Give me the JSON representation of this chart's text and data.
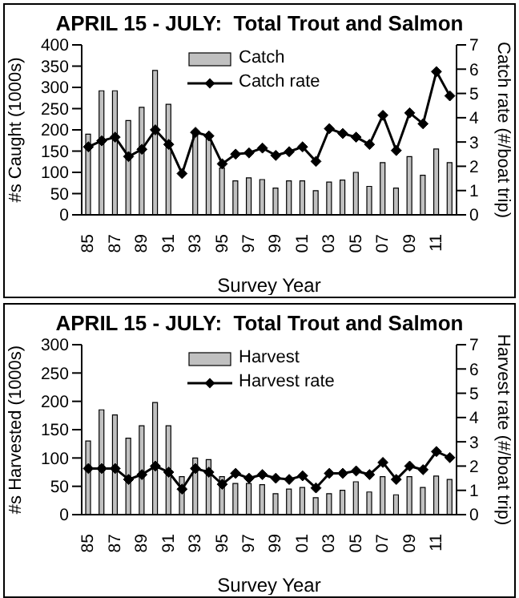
{
  "chart_data": [
    {
      "type": "bar",
      "title": "APRIL 15 - JULY:  Total Trout and Salmon",
      "xlabel": "Survey Year",
      "ylabel": "#s Caught (1000s)",
      "y2label": "Catch rate (#/boat trip)",
      "categories": [
        "85",
        null,
        "87",
        null,
        "89",
        null,
        "91",
        null,
        "93",
        null,
        "95",
        null,
        "97",
        null,
        "99",
        null,
        "01",
        null,
        "03",
        null,
        "05",
        null,
        "07",
        null,
        "09",
        null,
        "11",
        null
      ],
      "series": [
        {
          "name": "Catch",
          "type": "bar",
          "color": "#c0c0c0",
          "values": [
            190,
            292,
            292,
            222,
            253,
            340,
            260,
            null,
            190,
            180,
            110,
            80,
            87,
            83,
            63,
            80,
            80,
            57,
            77,
            82,
            100,
            67,
            123,
            63,
            137,
            93,
            155,
            123
          ]
        },
        {
          "name": "Catch rate",
          "type": "line",
          "axis": "y2",
          "color": "#000000",
          "marker": "diamond",
          "values": [
            2.8,
            3.05,
            3.2,
            2.4,
            2.7,
            3.5,
            2.9,
            1.7,
            3.4,
            3.25,
            2.1,
            2.5,
            2.55,
            2.75,
            2.45,
            2.6,
            2.8,
            2.2,
            3.55,
            3.35,
            3.2,
            2.9,
            4.1,
            2.65,
            4.2,
            3.75,
            5.9,
            4.9
          ]
        }
      ],
      "ylim": [
        0,
        400
      ],
      "yticks": [
        0,
        50,
        100,
        150,
        200,
        250,
        300,
        350,
        400
      ],
      "y2lim": [
        0,
        7
      ],
      "y2ticks": [
        0,
        1,
        2,
        3,
        4,
        5,
        6,
        7
      ],
      "legend": "top",
      "grid": false
    },
    {
      "type": "bar",
      "title": "APRIL 15 - JULY:  Total Trout and Salmon",
      "xlabel": "Survey Year",
      "ylabel": "#s Harvested (1000s)",
      "y2label": "Harvest rate (#/boat trip)",
      "categories": [
        "85",
        null,
        "87",
        null,
        "89",
        null,
        "91",
        null,
        "93",
        null,
        "95",
        null,
        "97",
        null,
        "99",
        null,
        "01",
        null,
        "03",
        null,
        "05",
        null,
        "07",
        null,
        "09",
        null,
        "11",
        null
      ],
      "series": [
        {
          "name": "Harvest",
          "type": "bar",
          "color": "#c0c0c0",
          "values": [
            130,
            185,
            176,
            135,
            157,
            198,
            157,
            67,
            100,
            97,
            67,
            55,
            55,
            53,
            37,
            45,
            48,
            30,
            37,
            43,
            58,
            40,
            67,
            35,
            67,
            48,
            68,
            62
          ]
        },
        {
          "name": "Harvest rate",
          "type": "line",
          "axis": "y2",
          "color": "#000000",
          "marker": "diamond",
          "values": [
            1.9,
            1.9,
            1.9,
            1.45,
            1.65,
            2.0,
            1.75,
            1.05,
            1.9,
            1.75,
            1.25,
            1.7,
            1.5,
            1.65,
            1.5,
            1.45,
            1.6,
            1.1,
            1.7,
            1.7,
            1.8,
            1.65,
            2.15,
            1.45,
            2.0,
            1.85,
            2.6,
            2.35
          ]
        }
      ],
      "ylim": [
        0,
        300
      ],
      "yticks": [
        0,
        50,
        100,
        150,
        200,
        250,
        300
      ],
      "y2lim": [
        0,
        7
      ],
      "y2ticks": [
        0,
        1,
        2,
        3,
        4,
        5,
        6,
        7
      ],
      "legend": "top",
      "grid": false
    }
  ]
}
